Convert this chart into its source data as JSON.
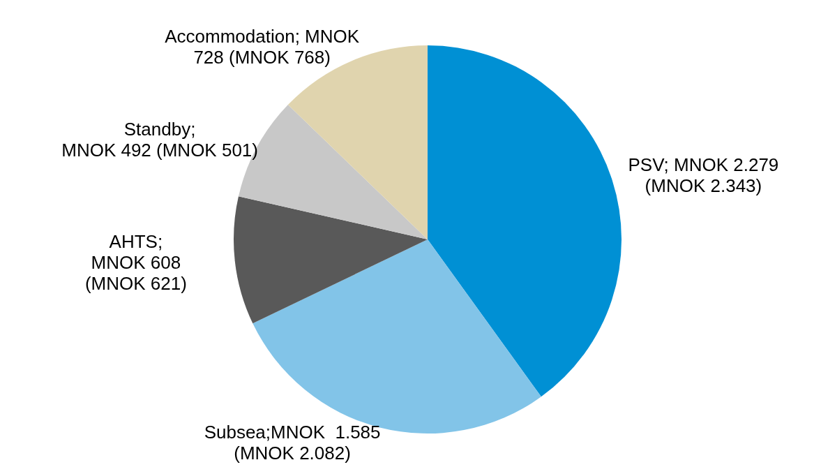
{
  "chart_data": {
    "type": "pie",
    "categories": [
      "PSV; MNOK 2.279\n(MNOK 2.343)",
      "Subsea;MNOK  1.585\n(MNOK 2.082)",
      "AHTS;\nMNOK 608\n(MNOK 621)",
      "Standby;\nMNOK 492 (MNOK 501)",
      "Accommodation; MNOK\n728 (MNOK 768)"
    ],
    "values": [
      2279,
      1585,
      608,
      492,
      728
    ],
    "colors": [
      "#0090d4",
      "#82c4e8",
      "#595959",
      "#c8c8c8",
      "#e0d4ae"
    ],
    "legend": false
  }
}
